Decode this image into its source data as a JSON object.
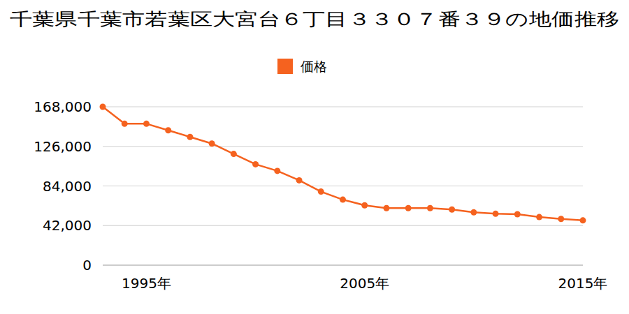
{
  "chart_data": {
    "type": "line",
    "title": "千葉県千葉市若葉区大宮台６丁目３３０７番３９の地価推移",
    "x": [
      1993,
      1994,
      1995,
      1996,
      1997,
      1998,
      1999,
      2000,
      2001,
      2002,
      2003,
      2004,
      2005,
      2006,
      2007,
      2008,
      2009,
      2010,
      2011,
      2012,
      2013,
      2014,
      2015
    ],
    "series": [
      {
        "name": "価格",
        "color": "#f5621f",
        "marker": "circle",
        "values": [
          168000,
          150000,
          150000,
          143000,
          136000,
          129000,
          118000,
          107000,
          100000,
          90000,
          78000,
          69500,
          63500,
          60500,
          60500,
          60500,
          59000,
          56000,
          54500,
          54000,
          51000,
          49000,
          47500
        ]
      }
    ],
    "xlim": [
      1993,
      2015
    ],
    "xticks": [
      {
        "value": 1995,
        "label": "1995年"
      },
      {
        "value": 2005,
        "label": "2005年"
      },
      {
        "value": 2015,
        "label": "2015年"
      }
    ],
    "ylim": [
      0,
      168000
    ],
    "yticks": [
      0,
      {
        "value": 42000,
        "label": "42,000"
      },
      {
        "value": 84000,
        "label": "84,000"
      },
      {
        "value": 126000,
        "label": "126,000"
      },
      {
        "value": 168000,
        "label": "168,000"
      }
    ],
    "grid": true,
    "legend": "top"
  }
}
